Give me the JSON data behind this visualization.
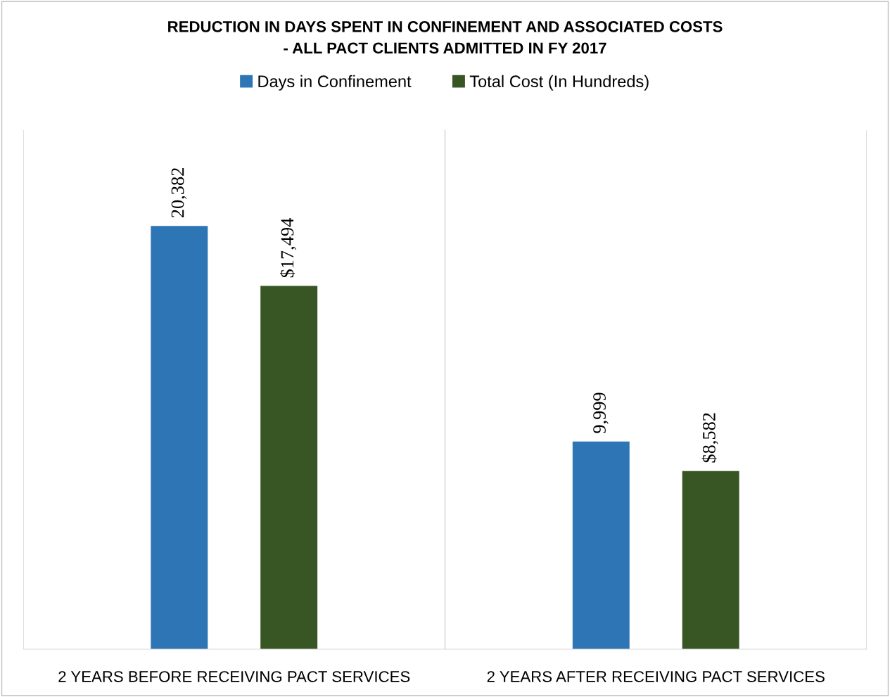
{
  "chart_data": {
    "type": "bar",
    "title": "REDUCTION IN DAYS SPENT IN CONFINEMENT AND ASSOCIATED COSTS\n- ALL PACT CLIENTS ADMITTED IN FY 2017",
    "categories": [
      "2 YEARS BEFORE RECEIVING PACT SERVICES",
      "2 YEARS AFTER RECEIVING PACT SERVICES"
    ],
    "series": [
      {
        "name": "Days in Confinement",
        "color": "#2e75b6",
        "values": [
          20382,
          9999
        ],
        "value_labels": [
          "20,382",
          "9,999"
        ]
      },
      {
        "name": "Total Cost (In Hundreds)",
        "color": "#375623",
        "values": [
          17494,
          8582
        ],
        "value_labels": [
          "$17,494",
          "$8,582"
        ]
      }
    ],
    "ylim": [
      0,
      25000
    ],
    "grid": "x",
    "legend": "top",
    "tick_labels": "x"
  }
}
